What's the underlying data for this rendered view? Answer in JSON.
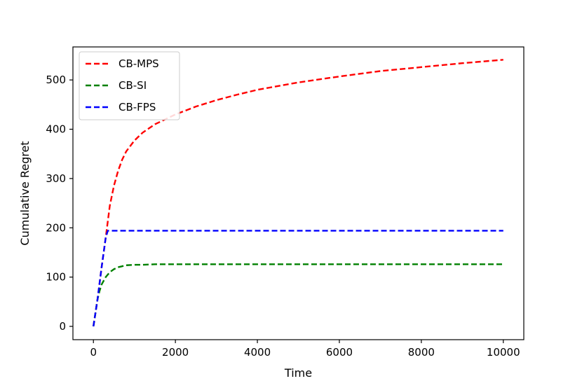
{
  "chart_data": {
    "type": "line",
    "xlabel": "Time",
    "ylabel": "Cumulative Regret",
    "xlim": [
      -500,
      10500
    ],
    "ylim": [
      -27,
      567
    ],
    "x_ticks": [
      0,
      2000,
      4000,
      6000,
      8000,
      10000
    ],
    "y_ticks": [
      0,
      100,
      200,
      300,
      400,
      500
    ],
    "grid": false,
    "legend_position": "top-left",
    "series": [
      {
        "name": "CB-MPS",
        "color": "#ff0000",
        "line_style": "dashed",
        "x": [
          0,
          100,
          200,
          300,
          400,
          500,
          600,
          700,
          800,
          1000,
          1200,
          1500,
          2000,
          2500,
          3000,
          3500,
          4000,
          5000,
          6000,
          7000,
          8000,
          9000,
          10000
        ],
        "y": [
          0,
          55,
          120,
          180,
          245,
          285,
          315,
          338,
          355,
          377,
          393,
          410,
          430,
          446,
          459,
          470,
          480,
          495,
          507,
          518,
          526,
          534,
          541
        ]
      },
      {
        "name": "CB-SI",
        "color": "#008000",
        "line_style": "dashed",
        "x": [
          0,
          100,
          150,
          200,
          300,
          400,
          500,
          600,
          700,
          800,
          1000,
          1200,
          1500,
          2000,
          4000,
          6000,
          8000,
          10000
        ],
        "y": [
          0,
          55,
          72,
          85,
          100,
          110,
          116,
          120,
          122,
          124,
          125,
          125,
          126,
          126,
          126,
          126,
          126,
          126
        ]
      },
      {
        "name": "CB-FPS",
        "color": "#0000ff",
        "line_style": "dashed",
        "x": [
          0,
          100,
          200,
          300,
          350,
          500,
          1000,
          2000,
          4000,
          6000,
          8000,
          10000
        ],
        "y": [
          0,
          55,
          120,
          180,
          194,
          194,
          194,
          194,
          194,
          194,
          194,
          194
        ]
      }
    ]
  }
}
